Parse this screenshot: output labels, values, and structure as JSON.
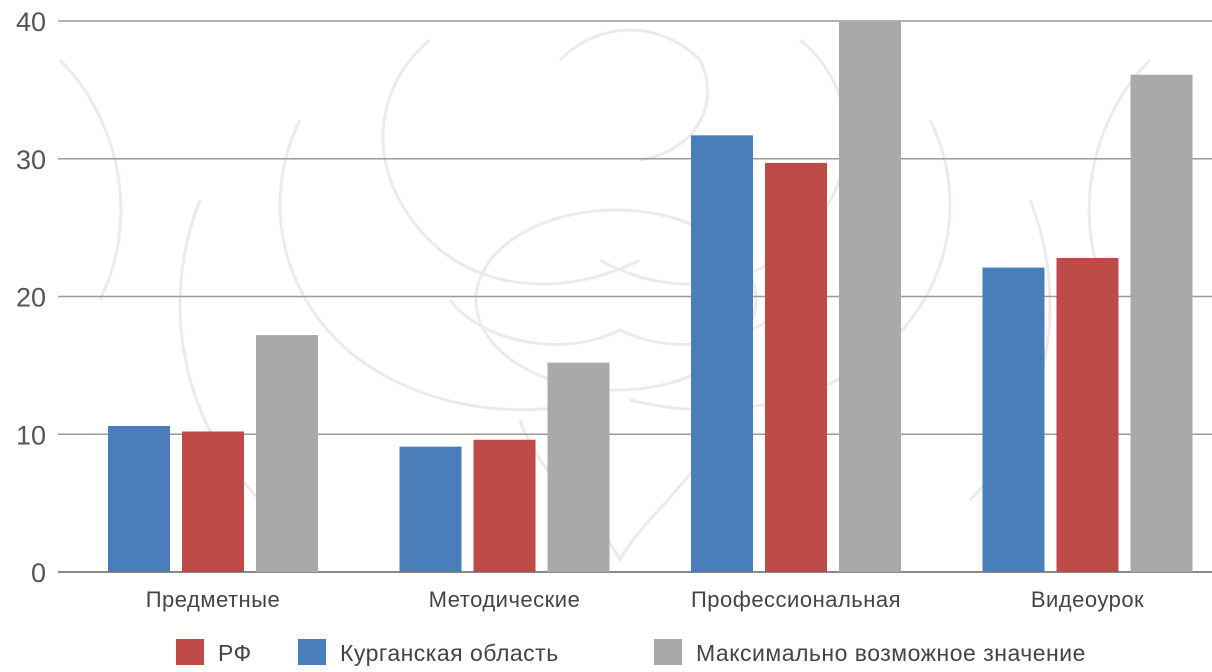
{
  "chart_data": {
    "type": "bar",
    "categories": [
      "Предметные",
      "Методические",
      "Профессиональная",
      "Видеоурок"
    ],
    "series": [
      {
        "name": "Курганская область",
        "color": "#4a7ebb",
        "values": [
          10.6,
          9.1,
          31.7,
          22.1
        ]
      },
      {
        "name": "РФ",
        "color": "#be4b48",
        "values": [
          10.2,
          9.6,
          29.7,
          22.8
        ]
      },
      {
        "name": "Максимально возможное значение",
        "color": "#a9a9a9",
        "values": [
          17.2,
          15.2,
          40,
          36.1
        ]
      }
    ],
    "legend_order": [
      1,
      0,
      2
    ],
    "yticks": [
      0,
      10,
      20,
      30,
      40
    ],
    "ylim": [
      0,
      40
    ],
    "grid": true,
    "legend_position": "bottom"
  }
}
